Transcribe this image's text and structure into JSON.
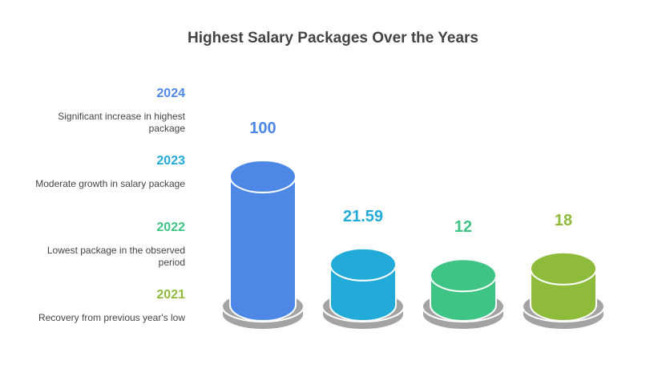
{
  "chart_data": {
    "type": "bar",
    "title": "Highest Salary Packages Over the Years",
    "categories": [
      "2024",
      "2023",
      "2022",
      "2021"
    ],
    "values": [
      100,
      21.59,
      12,
      18
    ],
    "value_labels": [
      "100",
      "21.59",
      "12",
      "18"
    ],
    "colors": [
      "#4e88e6",
      "#22aad9",
      "#3ec484",
      "#8fbb3a"
    ],
    "descriptions": [
      "Significant increase in highest package",
      "Moderate growth in salary package",
      "Lowest package in the observed period",
      "Recovery from previous year's low"
    ],
    "xlabel": "",
    "ylabel": ""
  }
}
